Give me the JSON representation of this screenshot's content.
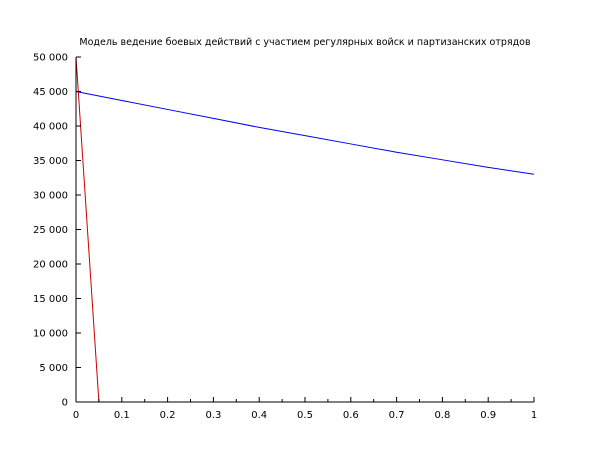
{
  "chart_data": {
    "type": "line",
    "title": "Модель ведение боевых действий с участием регулярных войск и партизанских отрядов",
    "xlabel": "",
    "ylabel": "",
    "xlim": [
      0,
      1
    ],
    "ylim": [
      0,
      50000
    ],
    "grid": false,
    "x_ticks": [
      {
        "value": 0,
        "label": "0"
      },
      {
        "value": 0.1,
        "label": "0.1"
      },
      {
        "value": 0.2,
        "label": "0.2"
      },
      {
        "value": 0.3,
        "label": "0.3"
      },
      {
        "value": 0.4,
        "label": "0.4"
      },
      {
        "value": 0.5,
        "label": "0.5"
      },
      {
        "value": 0.6,
        "label": "0.6"
      },
      {
        "value": 0.7,
        "label": "0.7"
      },
      {
        "value": 0.8,
        "label": "0.8"
      },
      {
        "value": 0.9,
        "label": "0.9"
      },
      {
        "value": 1,
        "label": "1"
      }
    ],
    "y_ticks": [
      {
        "value": 0,
        "label": "0"
      },
      {
        "value": 5000,
        "label": "5 000"
      },
      {
        "value": 10000,
        "label": "10 000"
      },
      {
        "value": 15000,
        "label": "15 000"
      },
      {
        "value": 20000,
        "label": "20 000"
      },
      {
        "value": 25000,
        "label": "25 000"
      },
      {
        "value": 30000,
        "label": "30 000"
      },
      {
        "value": 35000,
        "label": "35 000"
      },
      {
        "value": 40000,
        "label": "40 000"
      },
      {
        "value": 45000,
        "label": "45 000"
      },
      {
        "value": 50000,
        "label": "50 000"
      }
    ],
    "series": [
      {
        "color": "#0000ff",
        "x": [
          0,
          0.1,
          0.2,
          0.3,
          0.4,
          0.5,
          0.6,
          0.7,
          0.8,
          0.9,
          1
        ],
        "y": [
          45000,
          43700,
          42400,
          41100,
          39800,
          38600,
          37400,
          36200,
          35100,
          34000,
          33000
        ]
      },
      {
        "color": "#cc0000",
        "x": [
          0,
          0.05,
          1
        ],
        "y": [
          50000,
          0,
          0
        ]
      }
    ]
  }
}
